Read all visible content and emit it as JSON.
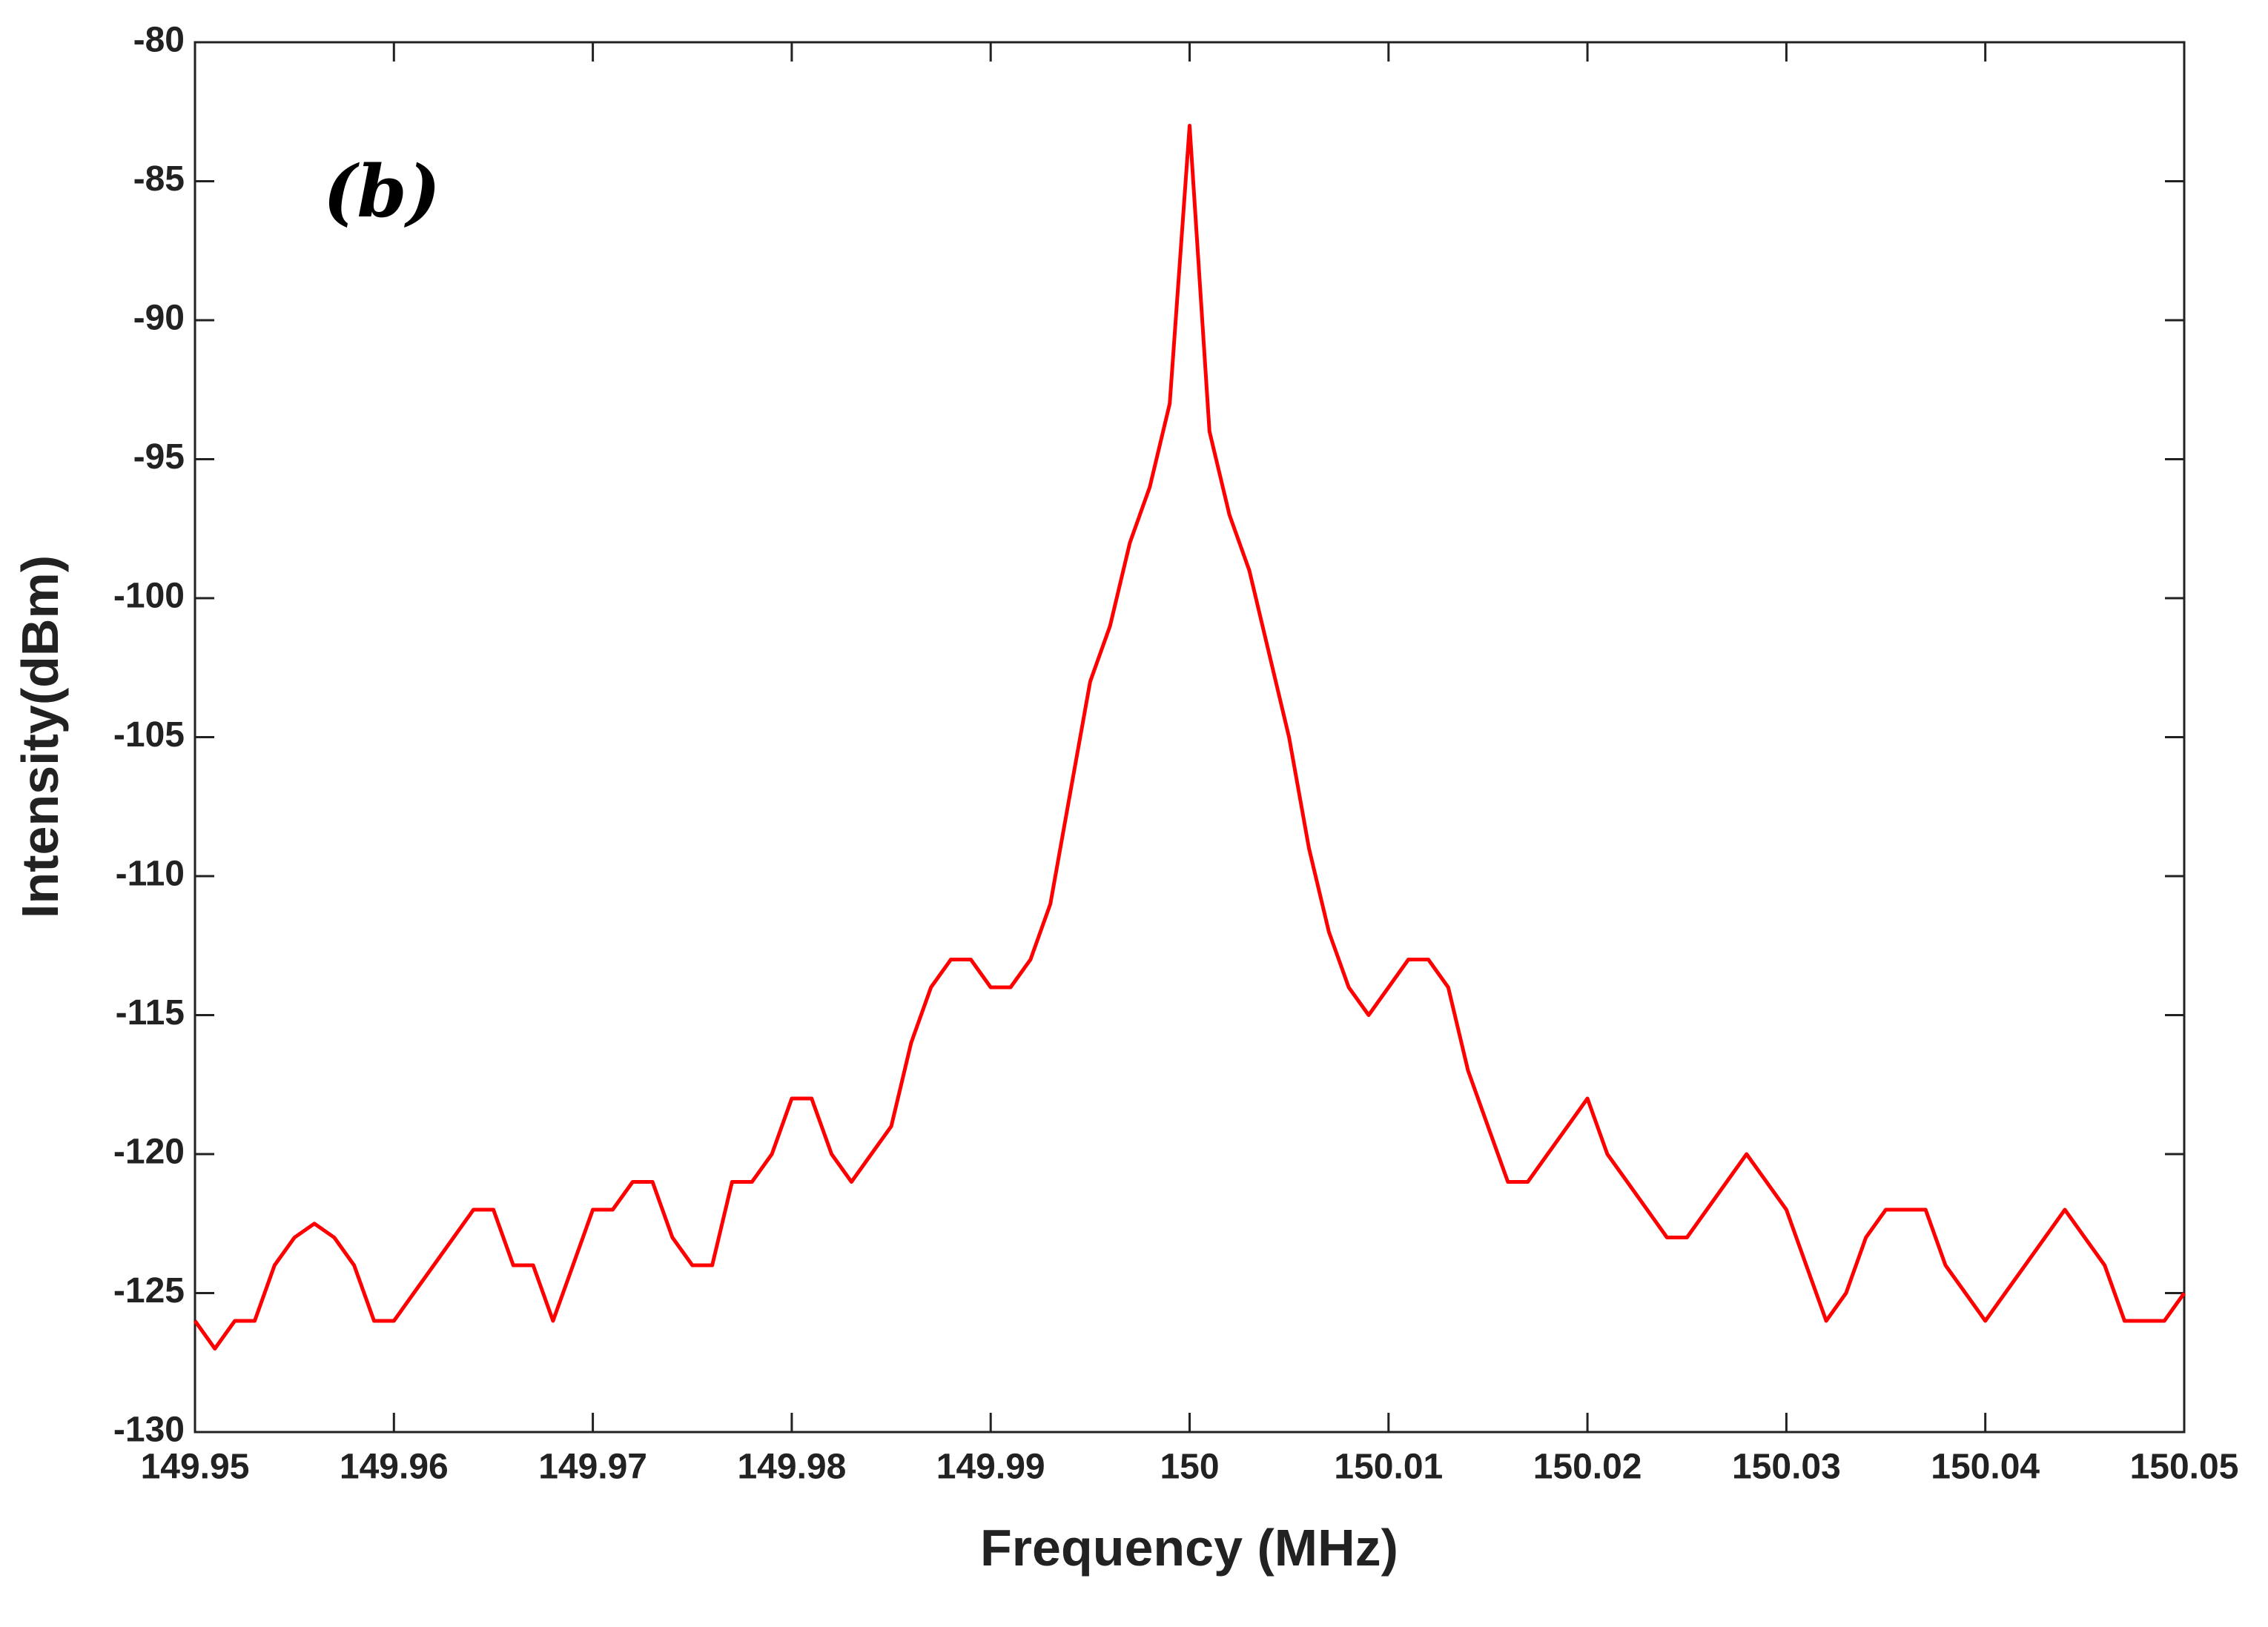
{
  "chart_data": {
    "type": "line",
    "xlabel": "Frequency (MHz)",
    "ylabel": "Intensity(dBm)",
    "annotation": "(b)",
    "color": "#ff0000",
    "x": [
      149.95,
      149.951,
      149.952,
      149.953,
      149.954,
      149.955,
      149.956,
      149.957,
      149.958,
      149.959,
      149.96,
      149.961,
      149.962,
      149.963,
      149.964,
      149.965,
      149.966,
      149.967,
      149.968,
      149.969,
      149.97,
      149.971,
      149.972,
      149.973,
      149.974,
      149.975,
      149.976,
      149.977,
      149.978,
      149.979,
      149.98,
      149.981,
      149.982,
      149.983,
      149.984,
      149.985,
      149.986,
      149.987,
      149.988,
      149.989,
      149.99,
      149.991,
      149.992,
      149.993,
      149.994,
      149.995,
      149.996,
      149.997,
      149.998,
      149.999,
      150.0,
      150.001,
      150.002,
      150.003,
      150.004,
      150.005,
      150.006,
      150.007,
      150.008,
      150.009,
      150.01,
      150.011,
      150.012,
      150.013,
      150.014,
      150.015,
      150.016,
      150.017,
      150.018,
      150.019,
      150.02,
      150.021,
      150.022,
      150.023,
      150.024,
      150.025,
      150.026,
      150.027,
      150.028,
      150.029,
      150.03,
      150.031,
      150.032,
      150.033,
      150.034,
      150.035,
      150.036,
      150.037,
      150.038,
      150.039,
      150.04,
      150.041,
      150.042,
      150.043,
      150.044,
      150.045,
      150.046,
      150.047,
      150.048,
      150.049,
      150.05
    ],
    "values": [
      -126,
      -127,
      -126,
      -126,
      -124,
      -123,
      -122.5,
      -123,
      -124,
      -126,
      -126,
      -125,
      -124,
      -123,
      -122,
      -122,
      -124,
      -124,
      -126,
      -124,
      -122,
      -122,
      -121,
      -121,
      -123,
      -124,
      -124,
      -121,
      -121,
      -120,
      -118,
      -118,
      -120,
      -121,
      -120,
      -119,
      -116,
      -114,
      -113,
      -113,
      -114,
      -114,
      -113,
      -111,
      -107,
      -103,
      -101,
      -98,
      -96,
      -93,
      -83,
      -94,
      -97,
      -99,
      -102,
      -105,
      -109,
      -112,
      -114,
      -115,
      -114,
      -113,
      -113,
      -114,
      -117,
      -119,
      -121,
      -121,
      -120,
      -119,
      -118,
      -120,
      -121,
      -122,
      -123,
      -123,
      -122,
      -121,
      -120,
      -121,
      -122,
      -124,
      -126,
      -125,
      -123,
      -122,
      -122,
      -122,
      -124,
      -125,
      -126,
      -125,
      -124,
      -123,
      -122,
      -123,
      -124,
      -126,
      -126,
      -126,
      -125
    ],
    "xlim": [
      149.95,
      150.05
    ],
    "xticks": [
      149.95,
      149.96,
      149.97,
      149.98,
      149.99,
      150,
      150.01,
      150.02,
      150.03,
      150.04,
      150.05
    ],
    "ylim": [
      -130,
      -80
    ],
    "yticks": [
      -130,
      -125,
      -120,
      -115,
      -110,
      -105,
      -100,
      -95,
      -90,
      -85,
      -80
    ]
  }
}
